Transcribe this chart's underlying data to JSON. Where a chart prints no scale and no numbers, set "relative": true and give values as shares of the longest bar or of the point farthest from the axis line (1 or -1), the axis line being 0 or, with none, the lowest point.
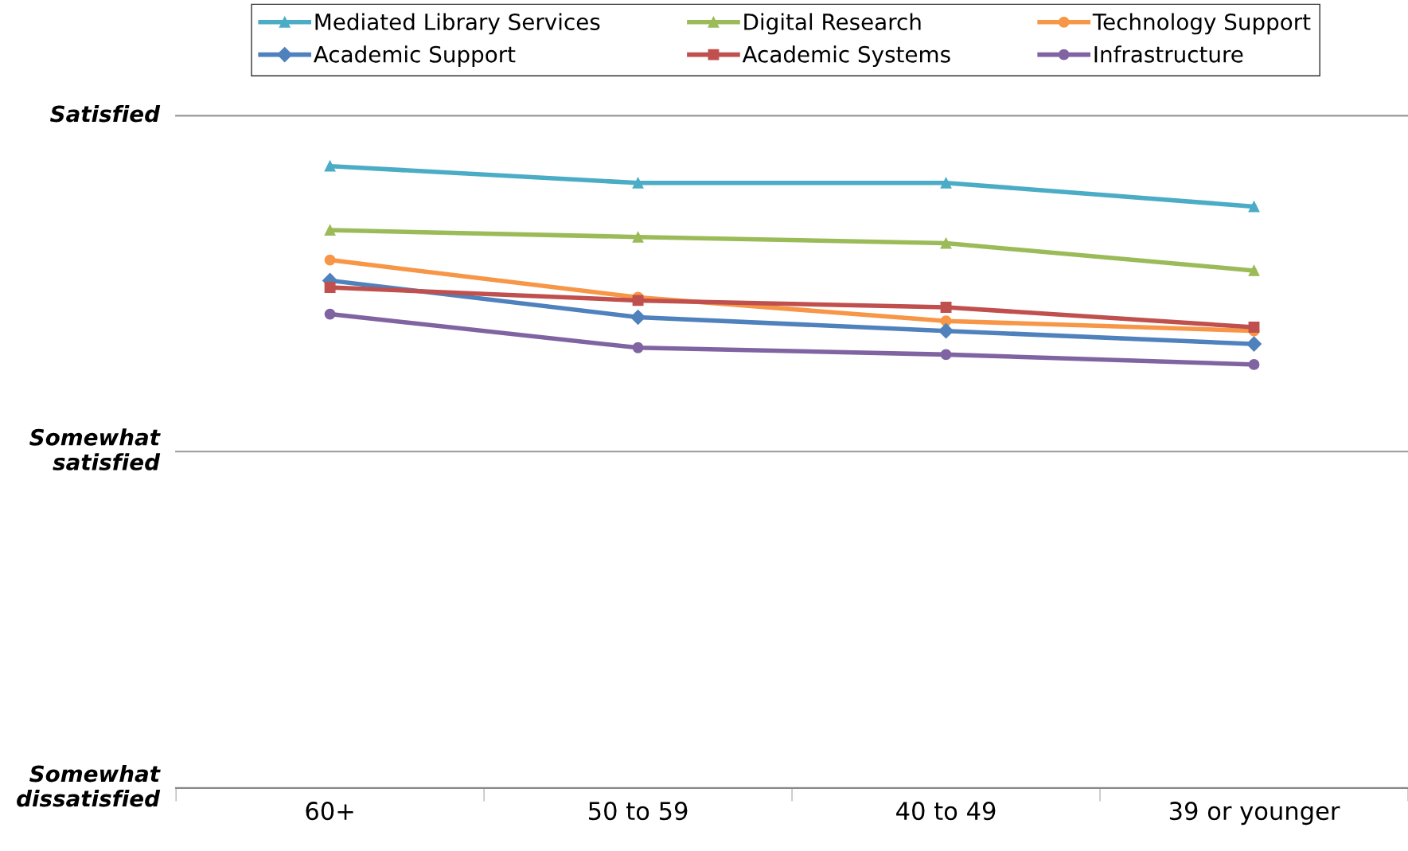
{
  "chart_data": {
    "type": "line",
    "relative": true,
    "categories": [
      "60+",
      "50 to 59",
      "40 to 49",
      "39 or younger"
    ],
    "series": [
      {
        "name": "Mediated Library Services",
        "color": "#4bacc6",
        "marker": "triangle",
        "values": [
          1,
          0.973,
          0.973,
          0.935
        ]
      },
      {
        "name": "Digital Research",
        "color": "#9bbb59",
        "marker": "triangle",
        "values": [
          0.897,
          0.886,
          0.876,
          0.832
        ]
      },
      {
        "name": "Technology Support",
        "color": "#f79646",
        "marker": "circle",
        "values": [
          0.849,
          0.789,
          0.751,
          0.735
        ]
      },
      {
        "name": "Academic Support",
        "color": "#4f81bd",
        "marker": "diamond",
        "values": [
          0.816,
          0.757,
          0.735,
          0.714
        ]
      },
      {
        "name": "Academic Systems",
        "color": "#c0504d",
        "marker": "square",
        "values": [
          0.805,
          0.784,
          0.773,
          0.741
        ]
      },
      {
        "name": "Infrastructure",
        "color": "#8064a2",
        "marker": "circle",
        "values": [
          0.762,
          0.708,
          0.697,
          0.681
        ]
      }
    ],
    "ref_lines": [
      {
        "axis": "y",
        "value": 1.081,
        "label": "Satisfied",
        "color": "#999999"
      },
      {
        "axis": "y",
        "value": 0.541,
        "label": "Somewhat\nsatisfied",
        "color": "#999999"
      }
    ],
    "annotations": [
      "Somewhat\ndissatisfied"
    ],
    "legend": "top",
    "line_style": "solid"
  }
}
